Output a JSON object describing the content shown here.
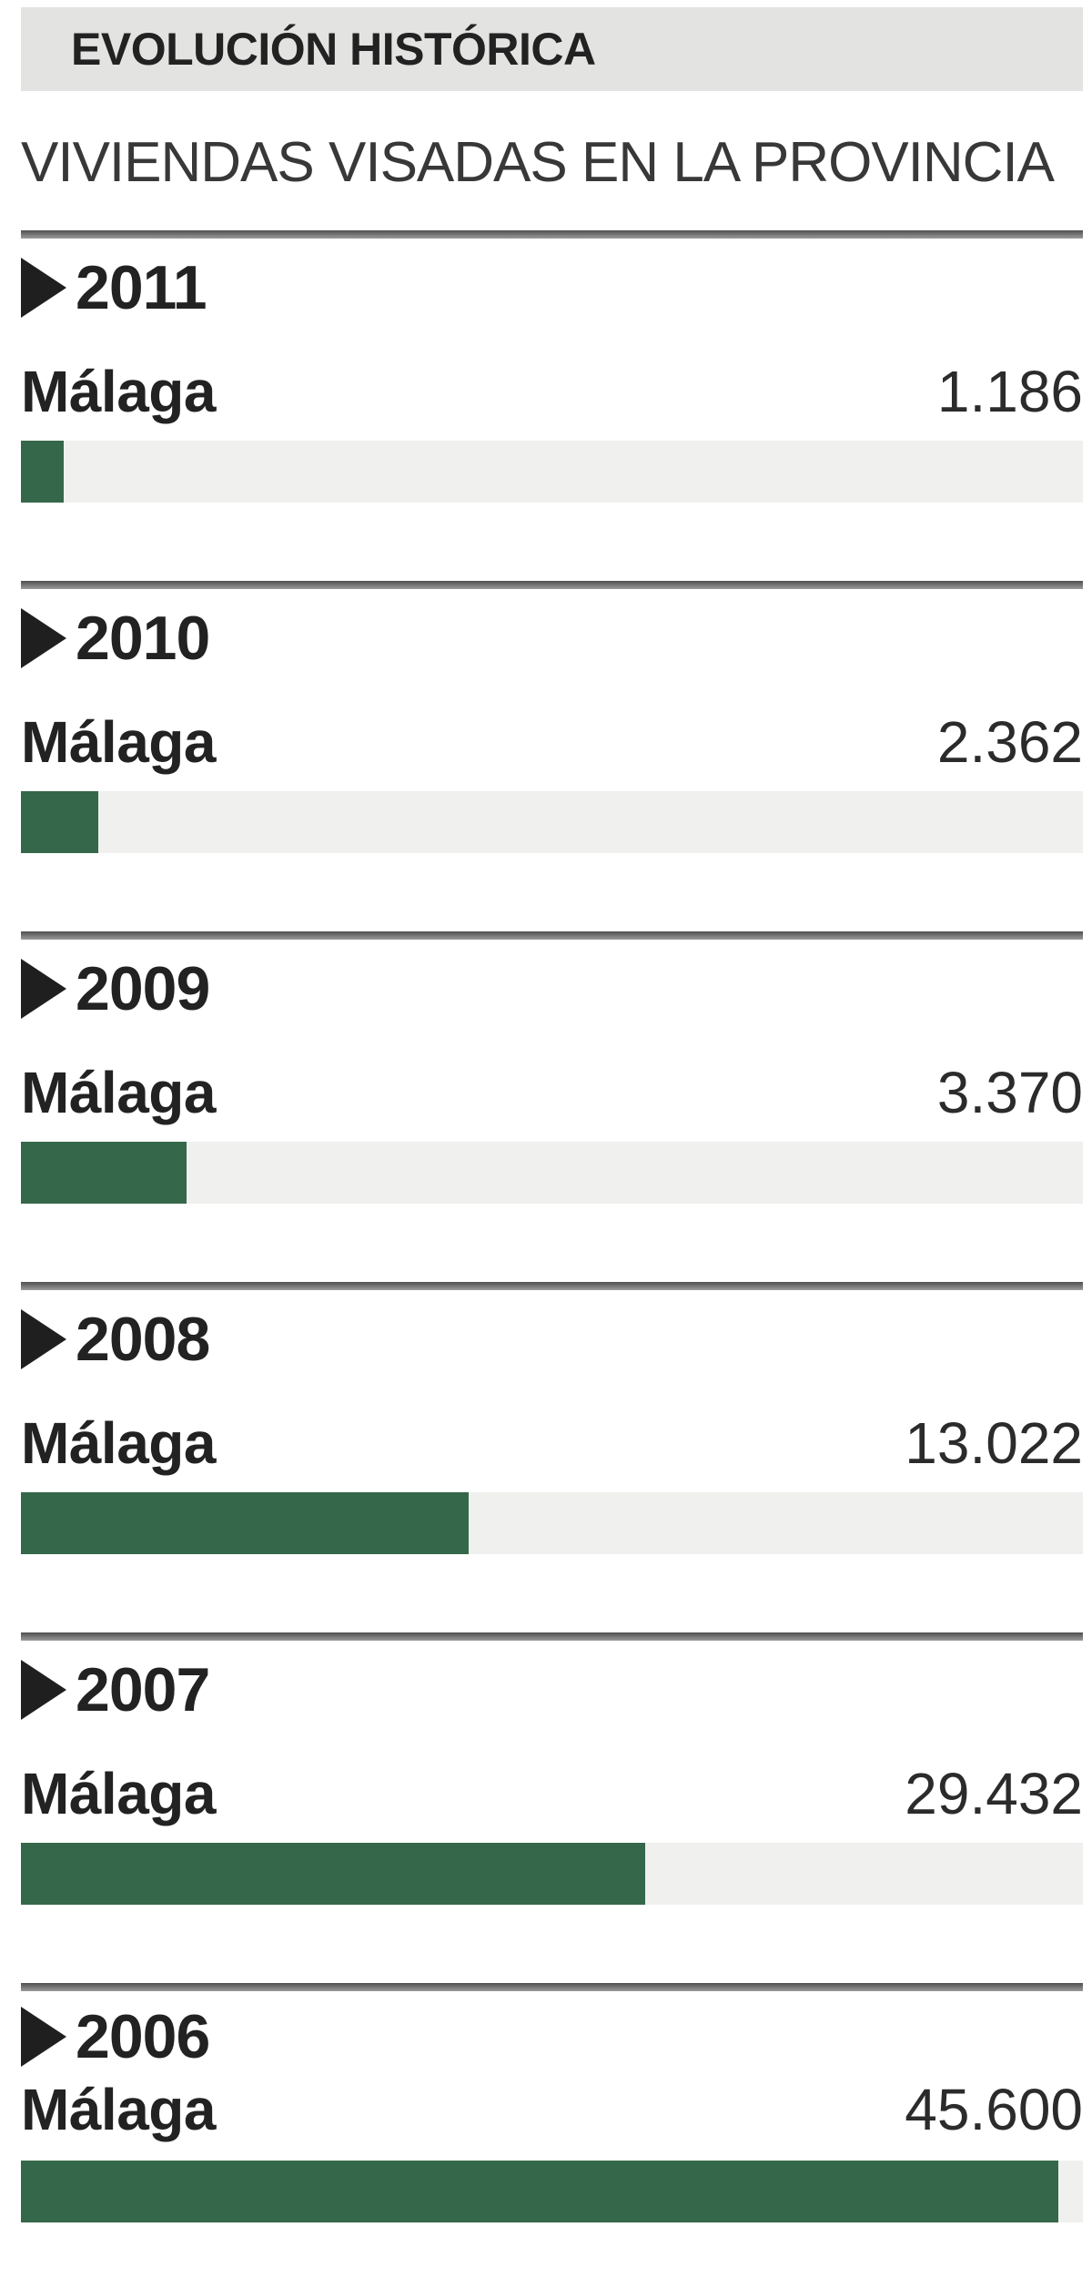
{
  "header": {
    "badge": "EVOLUCIÓN HISTÓRICA",
    "subtitle": "VIVIENDAS VISADAS EN LA PROVINCIA"
  },
  "chart_data": {
    "type": "bar",
    "title": "EVOLUCIÓN HISTÓRICA",
    "subtitle": "VIVIENDAS VISADAS EN LA PROVINCIA",
    "orientation": "horizontal",
    "series_label": "Málaga",
    "categories": [
      "2011",
      "2010",
      "2009",
      "2008",
      "2007",
      "2006"
    ],
    "values": [
      1186,
      2362,
      3370,
      13022,
      29432,
      45600
    ],
    "value_labels": [
      "1.186",
      "2.362",
      "3.370",
      "13.022",
      "29.432",
      "45.600"
    ],
    "bar_fill_pct_of_track": [
      4.0,
      7.3,
      15.6,
      42.2,
      58.8,
      97.7
    ],
    "grid": false,
    "legend": false
  },
  "sections": [
    {
      "year": "2011",
      "label": "Málaga",
      "value_label": "1.186",
      "bar_pct": 4.0
    },
    {
      "year": "2010",
      "label": "Málaga",
      "value_label": "2.362",
      "bar_pct": 7.3
    },
    {
      "year": "2009",
      "label": "Málaga",
      "value_label": "3.370",
      "bar_pct": 15.6
    },
    {
      "year": "2008",
      "label": "Málaga",
      "value_label": "13.022",
      "bar_pct": 42.2
    },
    {
      "year": "2007",
      "label": "Málaga",
      "value_label": "29.432",
      "bar_pct": 58.8
    },
    {
      "year": "2006",
      "label": "Málaga",
      "value_label": "45.600",
      "bar_pct": 97.7
    }
  ],
  "colors": {
    "green": "#35684a",
    "track": "#f0f0ee",
    "badge_bg": "#e3e3e1",
    "ink": "#222222"
  }
}
